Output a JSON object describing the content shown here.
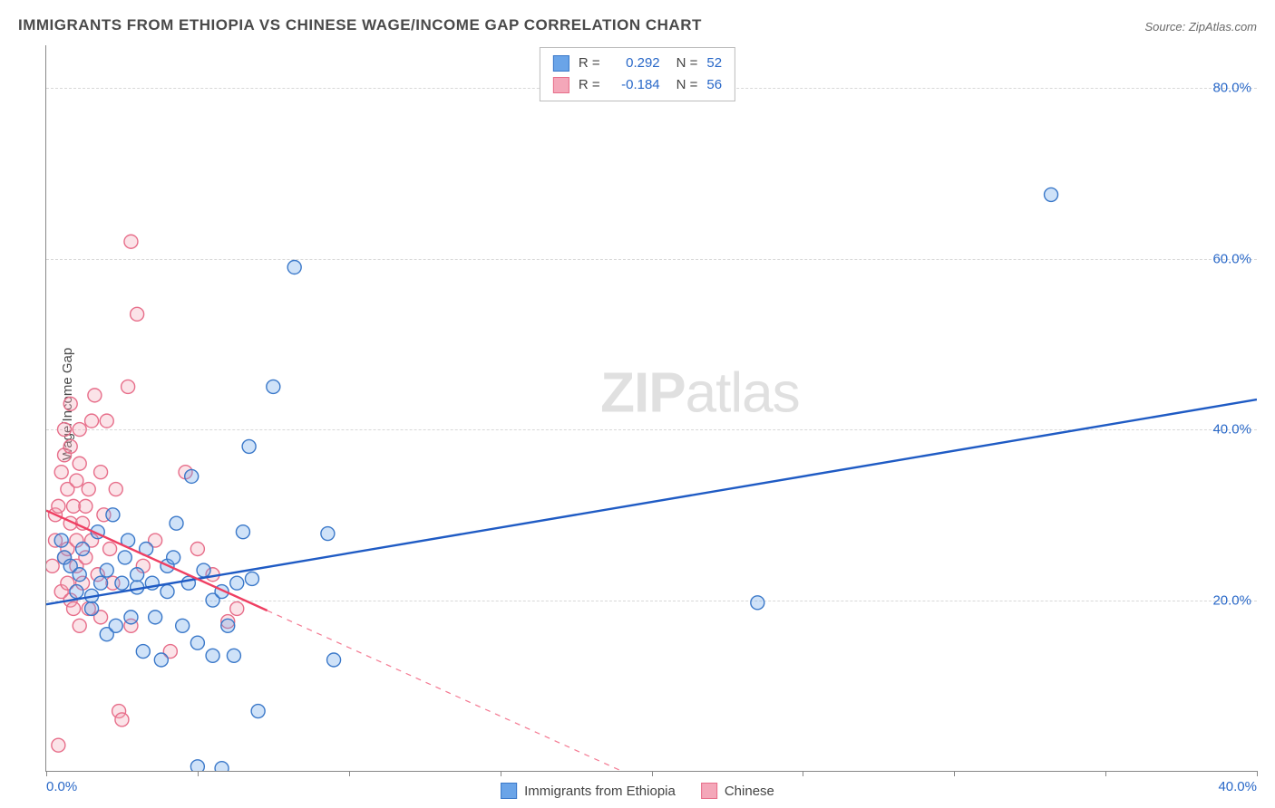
{
  "title": "IMMIGRANTS FROM ETHIOPIA VS CHINESE WAGE/INCOME GAP CORRELATION CHART",
  "source_label": "Source: ZipAtlas.com",
  "ylabel": "Wage/Income Gap",
  "watermark_zip": "ZIP",
  "watermark_atlas": "atlas",
  "chart": {
    "type": "scatter-with-regression",
    "background_color": "#ffffff",
    "grid_color": "#d8d8d8",
    "axis_color": "#888888",
    "xlim": [
      0,
      40
    ],
    "ylim": [
      0,
      85
    ],
    "xticks": [
      0,
      5,
      10,
      15,
      20,
      25,
      30,
      35,
      40
    ],
    "xtick_labels": {
      "0": "0.0%",
      "40": "40.0%"
    },
    "yticks": [
      20,
      40,
      60,
      80
    ],
    "ytick_labels": {
      "20": "20.0%",
      "40": "40.0%",
      "60": "60.0%",
      "80": "80.0%"
    },
    "tick_label_color": "#2968c8",
    "tick_label_fontsize": 15,
    "marker_radius": 7.5,
    "marker_stroke_width": 1.4,
    "marker_fill_opacity": 0.32,
    "trend_line_width": 2.4,
    "series": [
      {
        "name": "Immigrants from Ethiopia",
        "color": "#6aa4e8",
        "stroke": "#3a78c9",
        "trend_color": "#1f5bc4",
        "R": "0.292",
        "N": "52",
        "trend": {
          "x1": 0,
          "y1": 19.5,
          "x2": 40,
          "y2": 43.5,
          "solid_until_x": 40
        },
        "points": [
          [
            0.5,
            27
          ],
          [
            0.6,
            25
          ],
          [
            0.8,
            24
          ],
          [
            1.0,
            21
          ],
          [
            1.1,
            23
          ],
          [
            1.2,
            26
          ],
          [
            1.5,
            19
          ],
          [
            1.5,
            20.5
          ],
          [
            1.7,
            28
          ],
          [
            1.8,
            22
          ],
          [
            2.0,
            16
          ],
          [
            2.0,
            23.5
          ],
          [
            2.2,
            30
          ],
          [
            2.3,
            17
          ],
          [
            2.5,
            22
          ],
          [
            2.6,
            25
          ],
          [
            2.7,
            27
          ],
          [
            2.8,
            18
          ],
          [
            3.0,
            21.5
          ],
          [
            3.0,
            23
          ],
          [
            3.2,
            14
          ],
          [
            3.3,
            26
          ],
          [
            3.5,
            22
          ],
          [
            3.6,
            18
          ],
          [
            3.8,
            13
          ],
          [
            4.0,
            24
          ],
          [
            4.0,
            21
          ],
          [
            4.2,
            25
          ],
          [
            4.3,
            29
          ],
          [
            4.5,
            17
          ],
          [
            4.7,
            22
          ],
          [
            4.8,
            34.5
          ],
          [
            5.0,
            15
          ],
          [
            5.0,
            0.5
          ],
          [
            5.2,
            23.5
          ],
          [
            5.5,
            20
          ],
          [
            5.5,
            13.5
          ],
          [
            5.8,
            21
          ],
          [
            5.8,
            0.3
          ],
          [
            6.0,
            17
          ],
          [
            6.2,
            13.5
          ],
          [
            6.3,
            22
          ],
          [
            6.5,
            28
          ],
          [
            6.7,
            38
          ],
          [
            6.8,
            22.5
          ],
          [
            7.0,
            7
          ],
          [
            7.5,
            45
          ],
          [
            8.2,
            59
          ],
          [
            9.3,
            27.8
          ],
          [
            9.5,
            13
          ],
          [
            23.5,
            19.7
          ],
          [
            33.2,
            67.5
          ]
        ]
      },
      {
        "name": "Chinese",
        "color": "#f4a7b9",
        "stroke": "#e76e8a",
        "trend_color": "#ef3f62",
        "R": "-0.184",
        "N": "56",
        "trend": {
          "x1": 0,
          "y1": 30.5,
          "x2": 19,
          "y2": 0,
          "solid_until_x": 7.3
        },
        "points": [
          [
            0.2,
            24
          ],
          [
            0.3,
            27
          ],
          [
            0.3,
            30
          ],
          [
            0.4,
            31
          ],
          [
            0.4,
            3
          ],
          [
            0.5,
            21
          ],
          [
            0.5,
            35
          ],
          [
            0.6,
            25
          ],
          [
            0.6,
            37
          ],
          [
            0.6,
            40
          ],
          [
            0.7,
            22
          ],
          [
            0.7,
            26
          ],
          [
            0.7,
            33
          ],
          [
            0.8,
            20
          ],
          [
            0.8,
            29
          ],
          [
            0.8,
            38
          ],
          [
            0.8,
            43
          ],
          [
            0.9,
            19
          ],
          [
            0.9,
            31
          ],
          [
            1.0,
            24
          ],
          [
            1.0,
            27
          ],
          [
            1.0,
            34
          ],
          [
            1.1,
            17
          ],
          [
            1.1,
            36
          ],
          [
            1.1,
            40
          ],
          [
            1.2,
            22
          ],
          [
            1.2,
            29
          ],
          [
            1.3,
            31
          ],
          [
            1.3,
            25
          ],
          [
            1.4,
            19
          ],
          [
            1.4,
            33
          ],
          [
            1.5,
            27
          ],
          [
            1.5,
            41
          ],
          [
            1.6,
            44
          ],
          [
            1.7,
            23
          ],
          [
            1.8,
            35
          ],
          [
            1.8,
            18
          ],
          [
            1.9,
            30
          ],
          [
            2.0,
            41
          ],
          [
            2.1,
            26
          ],
          [
            2.2,
            22
          ],
          [
            2.3,
            33
          ],
          [
            2.4,
            7
          ],
          [
            2.5,
            6
          ],
          [
            2.7,
            45
          ],
          [
            2.8,
            62
          ],
          [
            2.8,
            17
          ],
          [
            3.0,
            53.5
          ],
          [
            3.2,
            24
          ],
          [
            3.6,
            27
          ],
          [
            4.1,
            14
          ],
          [
            4.6,
            35
          ],
          [
            5.0,
            26
          ],
          [
            5.5,
            23
          ],
          [
            6.0,
            17.5
          ],
          [
            6.3,
            19
          ]
        ]
      }
    ]
  },
  "legend_top": {
    "r_prefix": "R =",
    "n_prefix": "N ="
  },
  "legend_bottom": {
    "series1_label": "Immigrants from Ethiopia",
    "series2_label": "Chinese"
  }
}
